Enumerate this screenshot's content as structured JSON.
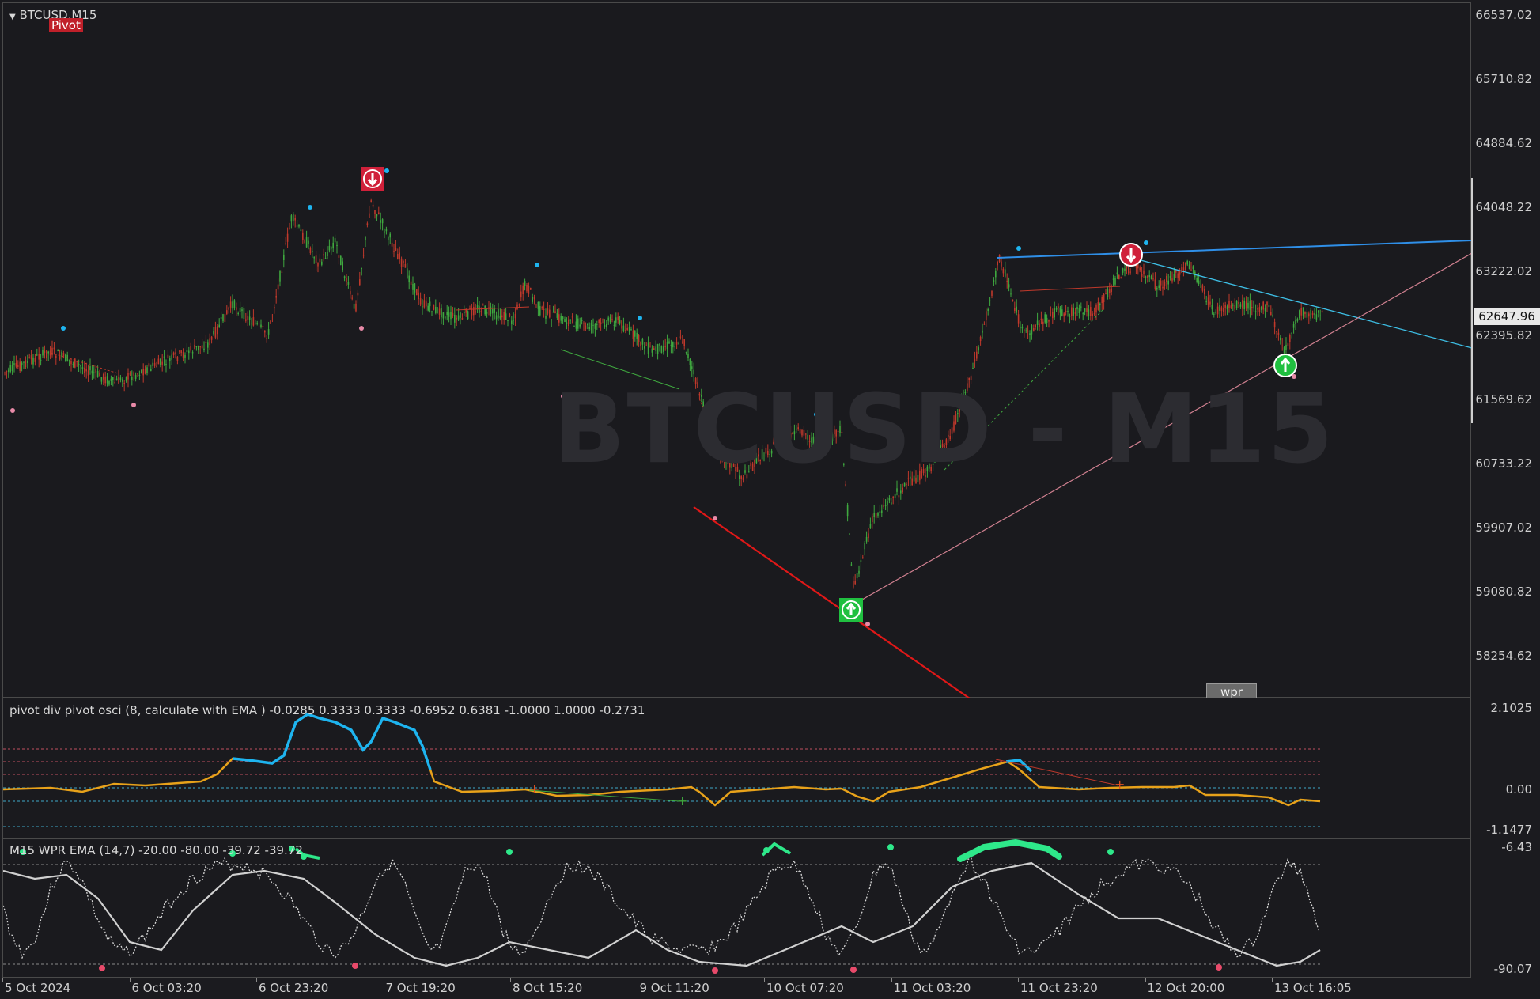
{
  "chart": {
    "symbol_label": "BTCUSD,M15",
    "indicator_badge": "Pivot",
    "watermark": "BTCUSD - M15",
    "current_price": "62647.96",
    "price_axis": [
      "66537.02",
      "65710.82",
      "64884.62",
      "64048.22",
      "63222.02",
      "62395.82",
      "61569.62",
      "60733.22",
      "59907.02",
      "59080.82",
      "58254.62"
    ],
    "wpr_button": "wpr"
  },
  "indicator1": {
    "title": "pivot div pivot osci (8, calculate with EMA ) -0.0285 0.3333 0.3333 -0.6952 0.6381 -1.0000 1.0000 -0.2731",
    "axis": [
      "2.1025",
      "0.00",
      "-1.1477"
    ]
  },
  "indicator2": {
    "title": "M15 WPR  EMA (14,7) -20.00 -80.00 -39.72 -39.72",
    "axis": [
      "-6.43",
      "-90.07"
    ]
  },
  "time_axis": [
    "5 Oct 2024",
    "6 Oct 03:20",
    "6 Oct 23:20",
    "7 Oct 19:20",
    "8 Oct 15:20",
    "9 Oct 11:20",
    "10 Oct 07:20",
    "11 Oct 03:20",
    "11 Oct 23:20",
    "12 Oct 20:00",
    "13 Oct 16:05"
  ],
  "colors": {
    "background": "#1a1a1e",
    "bull_candle": "#3fa83f",
    "bear_candle": "#c0392b",
    "osc_main": "#e8a21a",
    "osc_high": "#1eb4ef",
    "wpr_line": "#d8d8d8",
    "wpr_high": "#2ee88a",
    "wpr_low": "#e84a6a",
    "sell_arrow": "#d0203a",
    "buy_arrow": "#20c040"
  },
  "icons": [
    "sell-arrow-icon",
    "buy-arrow-icon",
    "collapse-triangle-icon"
  ]
}
